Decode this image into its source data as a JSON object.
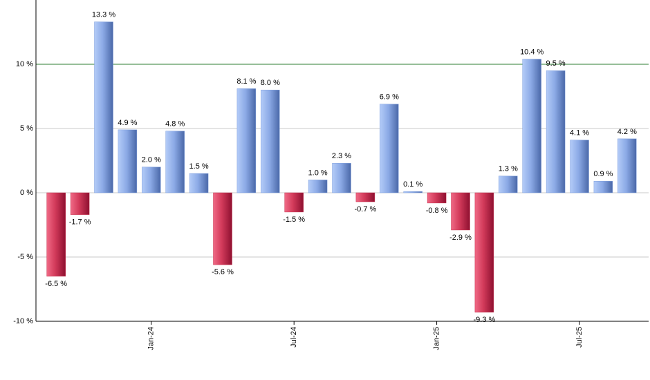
{
  "chart_data": {
    "type": "bar",
    "categories": [
      null,
      null,
      null,
      null,
      "Jan-24",
      null,
      null,
      null,
      null,
      null,
      "Jul-24",
      null,
      null,
      null,
      null,
      null,
      "Jan-25",
      null,
      null,
      null,
      null,
      null,
      "Jul-25",
      null,
      null
    ],
    "values": [
      -6.5,
      -1.7,
      13.3,
      4.9,
      2.0,
      4.8,
      1.5,
      -5.6,
      8.1,
      8.0,
      -1.5,
      1.0,
      2.3,
      -0.7,
      6.9,
      0.1,
      -0.8,
      -2.9,
      -9.3,
      1.3,
      10.4,
      9.5,
      4.1,
      0.9,
      4.2
    ],
    "value_labels": [
      "-6.5 %",
      "-1.7 %",
      "13.3 %",
      "4.9 %",
      "2.0 %",
      "4.8 %",
      "1.5 %",
      "-5.6 %",
      "8.1 %",
      "8.0 %",
      "-1.5 %",
      "1.0 %",
      "2.3 %",
      "-0.7 %",
      "6.9 %",
      "0.1 %",
      "-0.8 %",
      "-2.9 %",
      "-9.3 %",
      "1.3 %",
      "10.4 %",
      "9.5 %",
      "4.1 %",
      "0.9 %",
      "4.2 %"
    ],
    "positive_color": "#7f9fdc",
    "negative_color": "#c8304e",
    "ylim": [
      -10,
      15
    ],
    "yticks": [
      {
        "value": -10,
        "label": "-10 %"
      },
      {
        "value": -5,
        "label": "-5 %"
      },
      {
        "value": 0,
        "label": "0 %"
      },
      {
        "value": 5,
        "label": "5 %"
      },
      {
        "value": 10,
        "label": "10 %"
      }
    ],
    "grid": true,
    "reference_line": {
      "value": 10,
      "color": "#2e7d32"
    }
  }
}
